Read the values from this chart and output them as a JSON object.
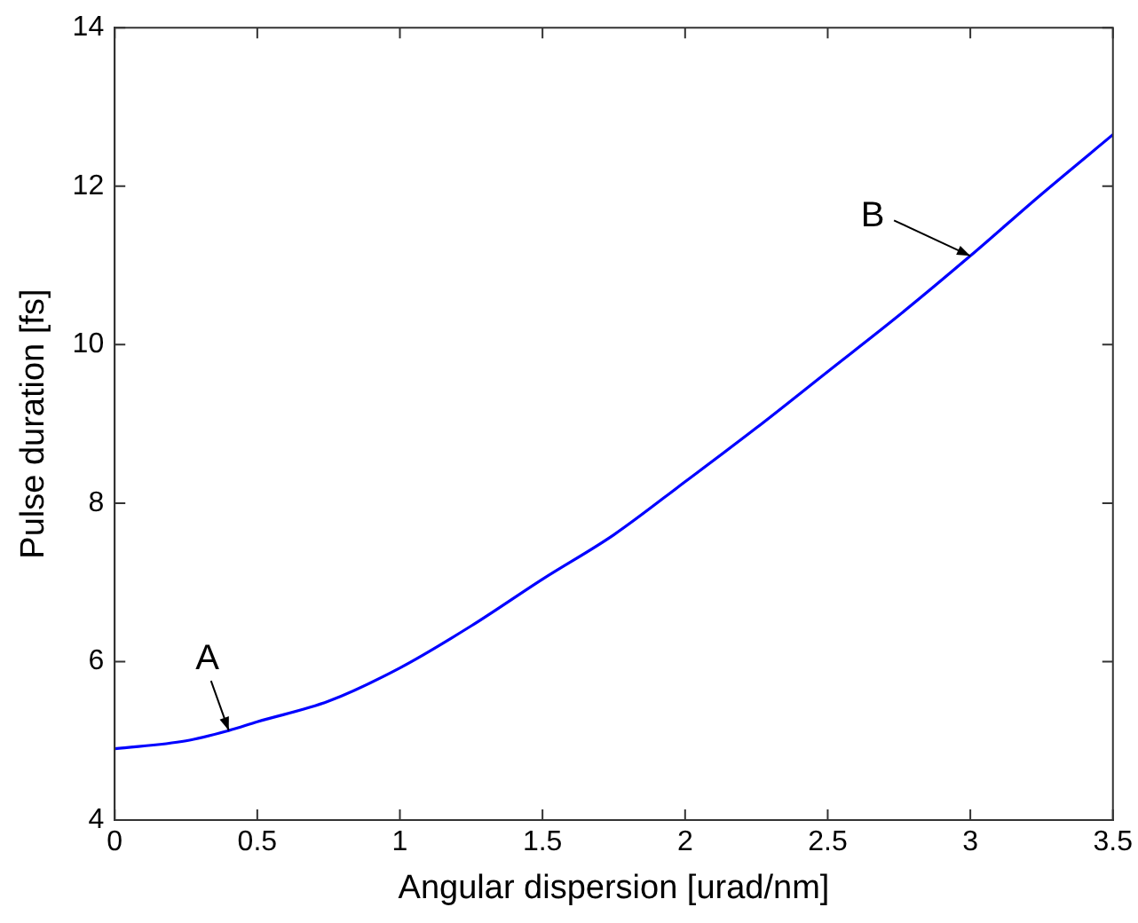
{
  "chart_data": {
    "type": "line",
    "xlabel": "Angular dispersion [urad/nm]",
    "ylabel": "Pulse duration [fs]",
    "x": [
      0,
      0.25,
      0.4,
      0.5,
      0.75,
      1,
      1.25,
      1.5,
      1.75,
      2,
      2.25,
      2.5,
      2.75,
      3,
      3.25,
      3.5
    ],
    "series": [
      {
        "color": "#0000ff",
        "values": [
          4.9,
          5.0,
          5.13,
          5.24,
          5.5,
          5.92,
          6.45,
          7.04,
          7.6,
          8.27,
          8.95,
          9.66,
          10.37,
          11.12,
          11.9,
          12.65
        ]
      }
    ],
    "xlim": [
      0,
      3.5
    ],
    "xticks": [
      0,
      0.5,
      1,
      1.5,
      2,
      2.5,
      3,
      3.5
    ],
    "ylim": [
      4,
      14
    ],
    "yticks": [
      4,
      6,
      8,
      10,
      12,
      14
    ],
    "grid": false,
    "legend": false,
    "marker": "none",
    "line_style": "solid",
    "annotations": [
      {
        "text": "A",
        "x": 0.4,
        "y": 5.13
      },
      {
        "text": "B",
        "x": 3,
        "y": 11.12
      }
    ]
  }
}
